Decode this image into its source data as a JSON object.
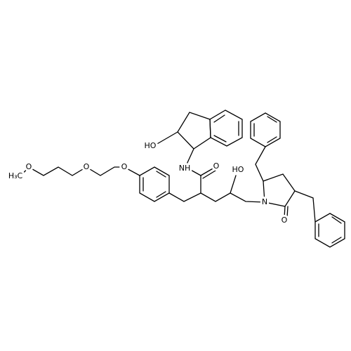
{
  "atoms": {
    "methyl": "H₃C",
    "ether_o1": "O",
    "ether_o2": "O",
    "phenoxy_o": "O",
    "amide_nh": "NH",
    "amide_o": "O",
    "indanol_oh": "HO",
    "chain_oh": "HO",
    "lactam_n": "N",
    "lactam_o": "O"
  }
}
